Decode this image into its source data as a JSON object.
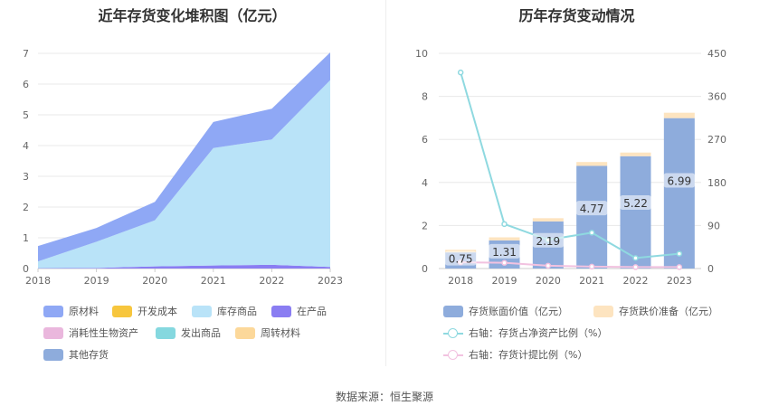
{
  "left_title": "近年存货变化堆积图（亿元）",
  "right_title": "历年存货变动情况",
  "source": "数据来源：恒生聚源",
  "chart_data": [
    {
      "type": "area",
      "title": "近年存货变化堆积图（亿元）",
      "x": [
        "2018",
        "2019",
        "2020",
        "2021",
        "2022",
        "2023"
      ],
      "y_ticks": [
        "0",
        "1",
        "2",
        "3",
        "4",
        "5",
        "6",
        "7"
      ],
      "ylim": [
        0,
        7
      ],
      "grid": true,
      "legend_position": "bottom",
      "series": [
        {
          "name": "原材料",
          "color": "#8fa8f5",
          "values": [
            0.5,
            0.45,
            0.6,
            0.85,
            1.0,
            0.9
          ]
        },
        {
          "name": "开发成本",
          "color": "#f7c63d",
          "values": [
            0,
            0,
            0,
            0,
            0,
            0
          ]
        },
        {
          "name": "库存商品",
          "color": "#b9e3f8",
          "values": [
            0.22,
            0.85,
            1.5,
            3.82,
            4.08,
            6.08
          ]
        },
        {
          "name": "在产品",
          "color": "#8a7df2",
          "values": [
            0.01,
            0.02,
            0.07,
            0.1,
            0.12,
            0.05
          ]
        },
        {
          "name": "消耗性生物资产",
          "color": "#eab7dd",
          "values": [
            0,
            0,
            0,
            0,
            0,
            0
          ]
        },
        {
          "name": "发出商品",
          "color": "#85d8df",
          "values": [
            0,
            0,
            0,
            0,
            0,
            0
          ]
        },
        {
          "name": "周转材料",
          "color": "#fcd89a",
          "values": [
            0,
            0,
            0,
            0,
            0,
            0
          ]
        },
        {
          "name": "其他存货",
          "color": "#8eacdc",
          "values": [
            0,
            0,
            0,
            0,
            0,
            0
          ]
        }
      ]
    },
    {
      "type": "bar",
      "title": "历年存货变动情况",
      "categories": [
        "2018",
        "2019",
        "2020",
        "2021",
        "2022",
        "2023"
      ],
      "y_left_ticks": [
        "0",
        "2",
        "4",
        "6",
        "8",
        "10"
      ],
      "y_right_ticks": [
        "0",
        "90",
        "180",
        "270",
        "360",
        "450"
      ],
      "ylim_left": [
        0,
        10
      ],
      "ylim_right": [
        0,
        450
      ],
      "legend_position": "bottom",
      "series": [
        {
          "name": "存货账面价值（亿元）",
          "kind": "bar",
          "color": "#8eacdc",
          "values": [
            0.75,
            1.31,
            2.19,
            4.77,
            5.22,
            6.99
          ],
          "labels": [
            "0.75",
            "1.31",
            "2.19",
            "4.77",
            "5.22",
            "6.99"
          ]
        },
        {
          "name": "存货跌价准备（亿元）",
          "kind": "bar",
          "color": "#fde4c0",
          "values": [
            0.12,
            0.14,
            0.15,
            0.18,
            0.17,
            0.25
          ]
        },
        {
          "name": "右轴：存货占净资产比例（%）",
          "kind": "line",
          "axis": "right",
          "color": "#8fd9e0",
          "values": [
            410,
            93,
            60,
            75,
            22,
            31
          ]
        },
        {
          "name": "右轴：存货计提比例（%）",
          "kind": "line",
          "axis": "right",
          "color": "#f2c2e0",
          "values": [
            13,
            12,
            6,
            4,
            3,
            3
          ]
        }
      ]
    }
  ]
}
